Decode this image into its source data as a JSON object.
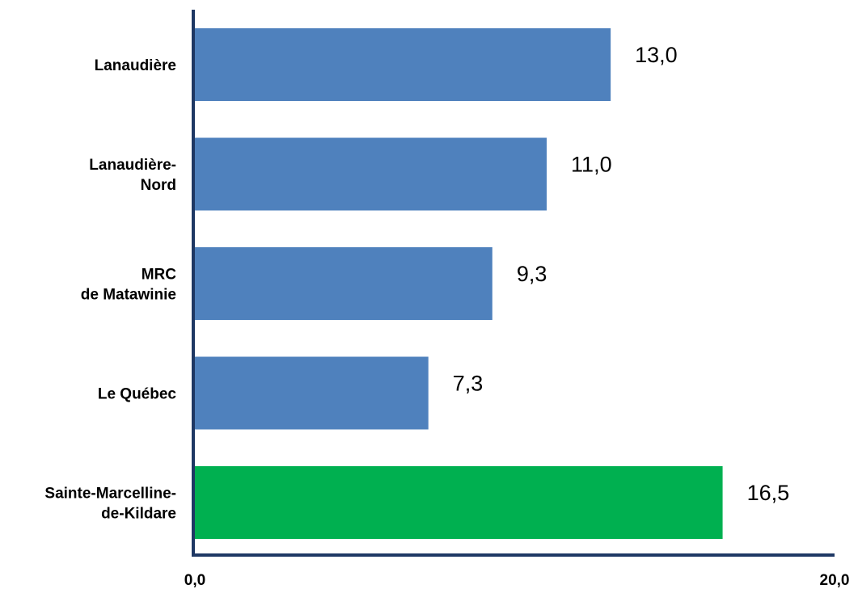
{
  "chart_data": {
    "type": "bar",
    "orientation": "horizontal",
    "categories": [
      [
        "Lanaudière"
      ],
      [
        "Lanaudière-",
        "Nord"
      ],
      [
        "MRC",
        "de Matawinie"
      ],
      [
        "Le Québec"
      ],
      [
        "Sainte-Marcelline-",
        "de-Kildare"
      ]
    ],
    "values": [
      13.0,
      11.0,
      9.3,
      7.3,
      16.5
    ],
    "value_labels": [
      "13,0",
      "11,0",
      "9,3",
      "7,3",
      "16,5"
    ],
    "bar_colors": [
      "#4f81bd",
      "#4f81bd",
      "#4f81bd",
      "#4f81bd",
      "#00b050"
    ],
    "xlim": [
      0,
      20
    ],
    "x_tick_labels": [
      "0,0",
      "20,0"
    ],
    "axis_color": "#1f3864",
    "grid": false
  }
}
